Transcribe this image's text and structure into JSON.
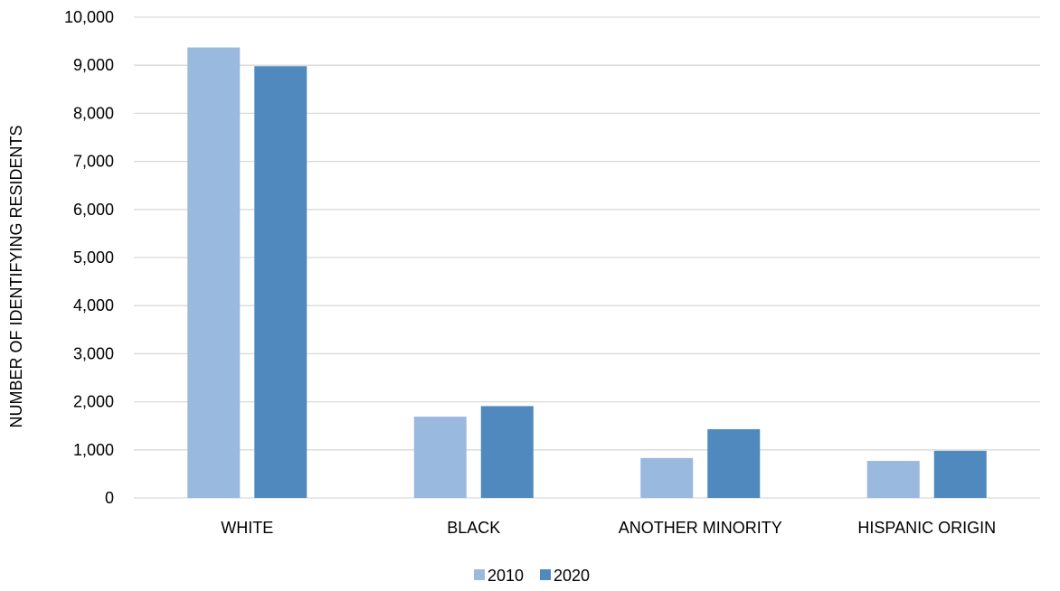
{
  "chart_data": {
    "type": "bar",
    "title": "",
    "xlabel": "",
    "ylabel": "NUMBER OF IDENTIFYING RESIDENTS",
    "categories": [
      "WHITE",
      "BLACK",
      "ANOTHER MINORITY",
      "HISPANIC ORIGIN"
    ],
    "series": [
      {
        "name": "2010",
        "color": "#9AB9DF",
        "values": [
          9370,
          1690,
          830,
          770
        ]
      },
      {
        "name": "2020",
        "color": "#4F89BD",
        "values": [
          8980,
          1910,
          1430,
          980
        ]
      }
    ],
    "ylim": [
      0,
      10000
    ],
    "yticks": [
      0,
      1000,
      2000,
      3000,
      4000,
      5000,
      6000,
      7000,
      8000,
      9000,
      10000
    ],
    "ytick_labels": [
      "0",
      "1,000",
      "2,000",
      "3,000",
      "4,000",
      "5,000",
      "6,000",
      "7,000",
      "8,000",
      "9,000",
      "10,000"
    ],
    "grid": true,
    "gridline_color": "#D9D9D9",
    "legend_position": "bottom"
  }
}
